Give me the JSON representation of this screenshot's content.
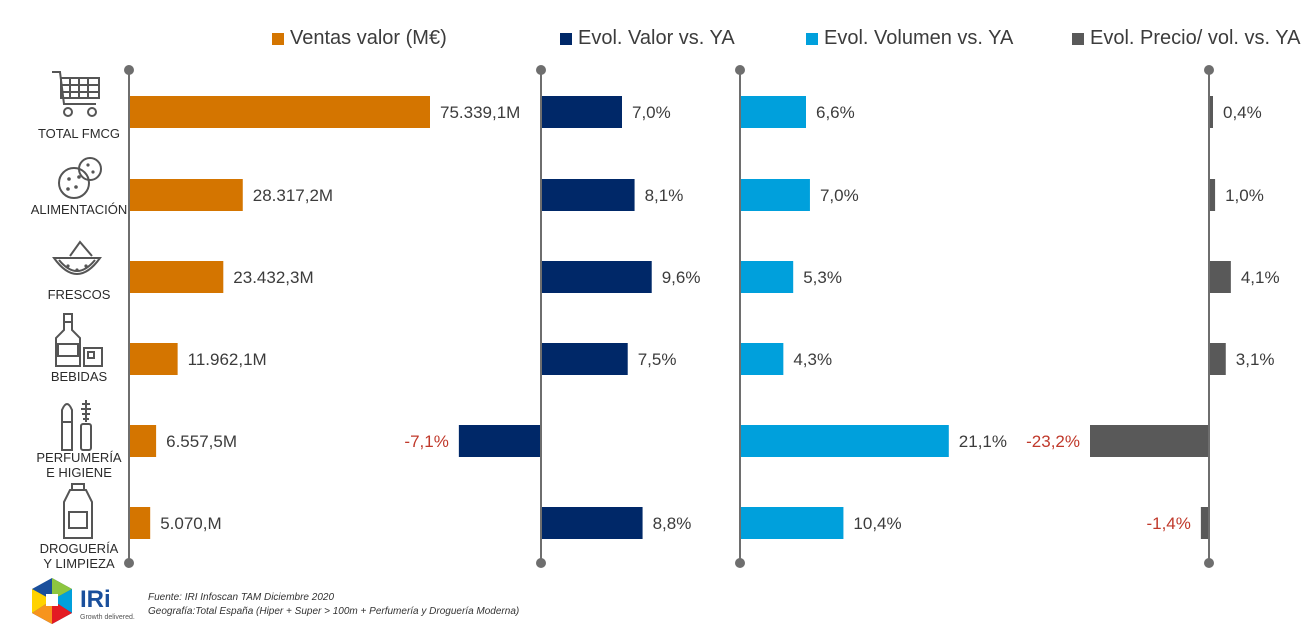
{
  "chart_data": {
    "type": "bar",
    "orientation": "horizontal",
    "categories": [
      "TOTAL FMCG",
      "ALIMENTACIÓN",
      "FRESCOS",
      "BEBIDAS",
      "PERFUMERÍA E HIGIENE",
      "DROGUERÍA Y LIMPIEZA"
    ],
    "category_lines": [
      [
        "TOTAL FMCG"
      ],
      [
        "ALIMENTACIÓN"
      ],
      [
        "FRESCOS"
      ],
      [
        "BEBIDAS"
      ],
      [
        "PERFUMERÍA",
        "E HIGIENE"
      ],
      [
        "DROGUERÍA",
        "Y LIMPIEZA"
      ]
    ],
    "category_icons": [
      "shopping-cart-icon",
      "cookie-icon",
      "fruit-slice-icon",
      "bottle-glass-icon",
      "lipstick-mascara-icon",
      "detergent-bottle-icon"
    ],
    "series": [
      {
        "name": "Ventas valor (M€)",
        "color": "#d47500",
        "values": [
          75339.1,
          28317.2,
          23432.3,
          11962.1,
          6557.5,
          5070.0
        ],
        "labels": [
          "75.339,1M",
          "28.317,2M",
          "23.432,3M",
          "11.962,1M",
          "6.557,5M",
          "5.070,M"
        ]
      },
      {
        "name": "Evol. Valor vs. YA",
        "color": "#002868",
        "values": [
          7.0,
          8.1,
          9.6,
          7.5,
          -7.1,
          8.8
        ],
        "labels": [
          "7,0%",
          "8,1%",
          "9,6%",
          "7,5%",
          "-7,1%",
          "8,8%"
        ]
      },
      {
        "name": "Evol. Volumen vs. YA",
        "color": "#00a0dc",
        "values": [
          6.6,
          7.0,
          5.3,
          4.3,
          21.1,
          10.4
        ],
        "labels": [
          "6,6%",
          "7,0%",
          "5,3%",
          "4,3%",
          "21,1%",
          "10,4%"
        ]
      },
      {
        "name": "Evol. Precio/ vol. vs. YA",
        "color": "#595959",
        "values": [
          0.4,
          1.0,
          4.1,
          3.1,
          -23.2,
          -1.4
        ],
        "labels": [
          "0,4%",
          "1,0%",
          "4,1%",
          "3,1%",
          "-23,2%",
          "-1,4%"
        ]
      }
    ],
    "negative_label_color": "#c0392b",
    "positive_label_color": "#3c3c3c",
    "axis_color": "#6e6e6e",
    "grid": false,
    "legend": "top"
  },
  "footer": {
    "source": "Fuente: IRI Infoscan TAM Diciembre 2020",
    "geography": "Geografía:Total España (Hiper + Super > 100m + Perfumería y Droguería Moderna)"
  },
  "logo": {
    "name": "IRi",
    "tagline": "Growth delivered."
  }
}
